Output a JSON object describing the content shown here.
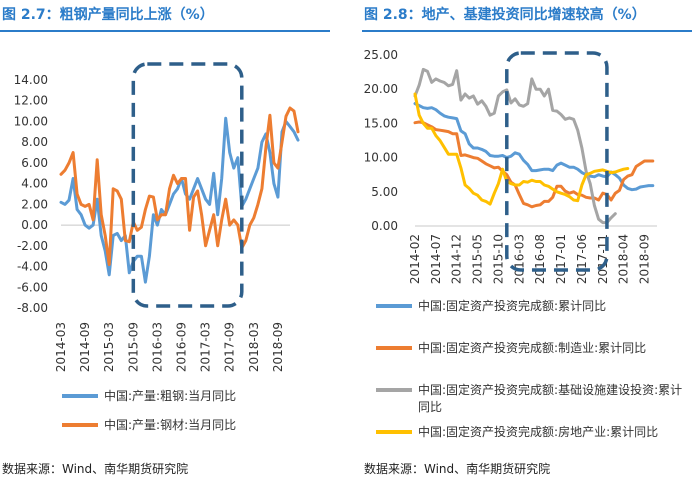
{
  "chart_data": [
    {
      "type": "line",
      "figure_label": "图 2.7",
      "title": "图 2.7：粗钢产量同比上涨（%）",
      "ylim": [
        -8,
        14
      ],
      "yticks": [
        "14.00",
        "12.00",
        "10.00",
        "8.00",
        "6.00",
        "4.00",
        "2.00",
        "0.00",
        "-2.00",
        "-4.00",
        "-6.00",
        "-8.00"
      ],
      "ytick_values": [
        14,
        12,
        10,
        8,
        6,
        4,
        2,
        0,
        -2,
        -4,
        -6,
        -8
      ],
      "xticks": [
        "2014-03",
        "2014-09",
        "2015-03",
        "2015-09",
        "2016-03",
        "2016-09",
        "2017-03",
        "2017-09",
        "2018-03",
        "2018-09"
      ],
      "x_start": "2014-03",
      "x_end": "2018-12",
      "highlight_range": [
        "2015-09",
        "2017-12"
      ],
      "series": [
        {
          "name": "中国:产量:粗钢:当月同比",
          "color": "#5b9bd5",
          "values": [
            2.2,
            2.0,
            2.4,
            4.5,
            1.5,
            1.0,
            0.0,
            -0.3,
            0.0,
            2.5,
            -1.0,
            -2.5,
            -4.8,
            -1.0,
            -0.8,
            -1.5,
            -1.0,
            -4.6,
            -3.5,
            -3.0,
            -3.0,
            -5.5,
            -3.0,
            1.0,
            0.0,
            1.5,
            1.0,
            2.0,
            3.0,
            3.5,
            4.5,
            3.0,
            2.5,
            3.5,
            4.5,
            3.5,
            2.5,
            2.0,
            5.0,
            1.0,
            4.5,
            10.3,
            7.0,
            5.5,
            6.5,
            1.8,
            2.5,
            3.5,
            4.5,
            5.5,
            8.0,
            8.8,
            7.0,
            4.0,
            2.7,
            9.0,
            10.0,
            9.5,
            9.0,
            8.2
          ]
        },
        {
          "name": "中国:产量:钢材:当月同比",
          "color": "#ed7d31",
          "values": [
            4.9,
            5.3,
            6.0,
            7.0,
            3.0,
            2.0,
            1.8,
            2.0,
            0.5,
            6.3,
            1.0,
            -1.0,
            -3.8,
            3.5,
            3.3,
            2.5,
            -1.5,
            -1.6,
            0.3,
            -0.5,
            -0.2,
            1.5,
            2.8,
            2.7,
            0.5,
            1.0,
            1.0,
            3.5,
            4.8,
            4.0,
            4.5,
            4.5,
            -0.5,
            2.7,
            3.3,
            1.0,
            -2.0,
            -0.5,
            1.0,
            -2.0,
            0.5,
            2.5,
            0.0,
            0.5,
            0.0,
            -2.2,
            -1.5,
            0.0,
            0.7,
            2.0,
            3.5,
            7.5,
            10.6,
            6.0,
            5.5,
            8.0,
            10.5,
            11.3,
            11.0,
            9.0
          ]
        }
      ]
    },
    {
      "type": "line",
      "figure_label": "图 2.8",
      "title": "图 2.8：地产、基建投资同比增速较高（%）",
      "ylim": [
        0,
        25
      ],
      "yticks": [
        "25.00",
        "20.00",
        "15.00",
        "10.00",
        "5.00",
        "0.00"
      ],
      "ytick_values": [
        25,
        20,
        15,
        10,
        5,
        0
      ],
      "xticks": [
        "2014-02",
        "2014-07",
        "2014-12",
        "2015-05",
        "2015-10",
        "2016-03",
        "2016-08",
        "2017-01",
        "2017-06",
        "2017-11",
        "2018-04",
        "2018-09"
      ],
      "x_start": "2014-02",
      "x_end": "2018-12",
      "highlight_range": [
        "2015-12",
        "2017-12"
      ],
      "series": [
        {
          "name": "中国:固定资产投资完成额:累计同比",
          "color": "#5b9bd5",
          "values": [
            17.9,
            17.6,
            17.3,
            17.2,
            17.3,
            17.0,
            16.5,
            16.1,
            15.9,
            15.8,
            15.7,
            13.9,
            13.5,
            12.0,
            11.4,
            11.4,
            11.2,
            10.9,
            10.3,
            10.2,
            10.2,
            10.3,
            10.0,
            10.2,
            10.7,
            10.5,
            9.6,
            9.0,
            8.1,
            8.1,
            8.2,
            8.3,
            8.3,
            8.1,
            8.9,
            9.2,
            8.9,
            8.6,
            8.6,
            8.3,
            7.8,
            7.5,
            7.3,
            7.2,
            7.5,
            7.3,
            7.2,
            7.9,
            7.5,
            7.0,
            6.0,
            5.5,
            5.3,
            5.4,
            5.7,
            5.8,
            5.9,
            5.9
          ]
        },
        {
          "name": "中国:固定资产投资完成额:制造业:累计同比",
          "color": "#ed7d31",
          "values": [
            15.1,
            15.2,
            15.1,
            14.8,
            14.5,
            14.1,
            14.0,
            13.9,
            13.8,
            13.5,
            13.5,
            10.3,
            10.4,
            10.2,
            10.0,
            9.9,
            9.5,
            9.1,
            8.8,
            8.5,
            8.6,
            8.0,
            7.5,
            6.4,
            6.0,
            4.6,
            3.3,
            3.1,
            2.8,
            3.0,
            3.1,
            3.6,
            3.6,
            4.2,
            5.8,
            5.8,
            5.1,
            4.8,
            5.0,
            4.6,
            4.5,
            4.2,
            4.1,
            4.1,
            3.8,
            4.8,
            4.6,
            3.8,
            4.8,
            5.2,
            6.8,
            7.3,
            7.5,
            8.7,
            9.1,
            9.5,
            9.5,
            9.5
          ]
        },
        {
          "name": "中国:固定资产投资完成额:基础设施建设投资:累计同比",
          "color": "#a5a5a5",
          "values": [
            19.0,
            20.6,
            22.9,
            22.6,
            21.0,
            21.5,
            21.2,
            21.0,
            20.5,
            20.7,
            22.7,
            18.4,
            19.3,
            18.7,
            19.0,
            17.8,
            18.3,
            17.5,
            16.2,
            16.5,
            19.0,
            19.6,
            19.9,
            18.0,
            18.6,
            17.7,
            17.5,
            17.9,
            21.5,
            20.0,
            20.0,
            19.0,
            20.0,
            16.9,
            16.8,
            16.3,
            15.6,
            15.8,
            15.6,
            14.0,
            11.4,
            8.0,
            6.2,
            3.0,
            1.0,
            0.5,
            0.5,
            1.2,
            1.8
          ]
        },
        {
          "name": "中国:固定资产投资完成额:房地产业:累计同比",
          "color": "#ffc000",
          "values": [
            19.3,
            16.2,
            15.0,
            14.3,
            14.3,
            13.2,
            12.5,
            11.5,
            10.5,
            10.5,
            10.5,
            8.5,
            6.0,
            5.5,
            4.8,
            4.5,
            3.8,
            3.6,
            3.2,
            4.8,
            6.2,
            8.3,
            6.5,
            6.2,
            6.0,
            6.0,
            6.5,
            6.4,
            6.7,
            6.5,
            6.5,
            6.0,
            5.8,
            5.4,
            5.0,
            4.8,
            4.6,
            4.3,
            3.8,
            3.7,
            6.0,
            7.5,
            7.7,
            8.0,
            8.1,
            8.2,
            8.0,
            7.8,
            7.9,
            8.1,
            8.3,
            8.4
          ]
        }
      ]
    }
  ],
  "left_panel": {
    "title": "图 2.7：粗钢产量同比上涨（%）",
    "legend": [
      "中国:产量:粗钢:当月同比",
      "中国:产量:钢材:当月同比"
    ],
    "source": "数据来源：Wind、南华期货研究院"
  },
  "right_panel": {
    "title": "图 2.8：地产、基建投资同比增速较高（%）",
    "legend_lines": [
      [
        "中国:固定资产投资完成额:累计同比"
      ],
      [
        "中国:固定资产投资完成额:制造业:累计同比"
      ],
      [
        "中国:固定资产投资完成额:基础设施建设投资:累计",
        "同比"
      ],
      [
        "中国:固定资产投资完成额:房地产业:累计同比"
      ]
    ],
    "source": "数据来源：Wind、南华期货研究院"
  },
  "colors": {
    "title_blue": "#2b7cc9",
    "highlight_box": "#2e5f8a",
    "axis": "#c8c8c8"
  }
}
